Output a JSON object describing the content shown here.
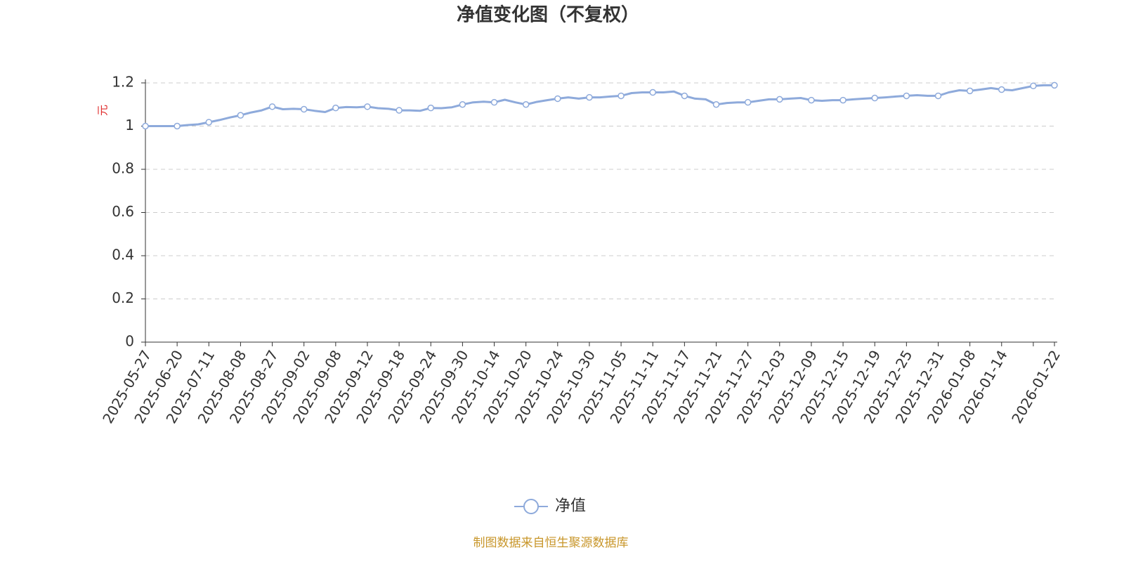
{
  "chart_data": {
    "type": "line",
    "title": "净值变化图（不复权）",
    "y_axis_label": "元",
    "source": "制图数据来自恒生聚源数据库",
    "categories": [
      "2025-05-27",
      null,
      null,
      "2025-06-20",
      null,
      null,
      "2025-07-11",
      null,
      null,
      "2025-08-08",
      null,
      null,
      "2025-08-27",
      null,
      null,
      "2025-09-02",
      null,
      null,
      "2025-09-08",
      null,
      null,
      "2025-09-12",
      null,
      null,
      "2025-09-18",
      null,
      null,
      "2025-09-24",
      null,
      null,
      "2025-09-30",
      null,
      null,
      "2025-10-14",
      null,
      null,
      "2025-10-20",
      null,
      null,
      "2025-10-24",
      null,
      null,
      "2025-10-30",
      null,
      null,
      "2025-11-05",
      null,
      null,
      "2025-11-11",
      null,
      null,
      "2025-11-17",
      null,
      null,
      "2025-11-21",
      null,
      null,
      "2025-11-27",
      null,
      null,
      "2025-12-03",
      null,
      null,
      "2025-12-09",
      null,
      null,
      "2025-12-15",
      null,
      null,
      "2025-12-19",
      null,
      null,
      "2025-12-25",
      null,
      null,
      "2025-12-31",
      null,
      null,
      "2026-01-08",
      null,
      null,
      "2026-01-14",
      null,
      null,
      null,
      null,
      "2026-01-22"
    ],
    "series": [
      {
        "name": "净值",
        "color": "#8eaadb",
        "values": [
          1.0,
          1.0,
          1.0,
          1.0,
          1.005,
          1.008,
          1.018,
          1.028,
          1.04,
          1.05,
          1.063,
          1.073,
          1.09,
          1.078,
          1.08,
          1.078,
          1.071,
          1.065,
          1.084,
          1.088,
          1.087,
          1.09,
          1.083,
          1.08,
          1.073,
          1.073,
          1.071,
          1.084,
          1.083,
          1.087,
          1.1,
          1.11,
          1.113,
          1.11,
          1.122,
          1.11,
          1.1,
          1.112,
          1.12,
          1.127,
          1.133,
          1.127,
          1.133,
          1.133,
          1.137,
          1.14,
          1.153,
          1.156,
          1.156,
          1.156,
          1.16,
          1.14,
          1.127,
          1.124,
          1.1,
          1.107,
          1.11,
          1.11,
          1.117,
          1.124,
          1.124,
          1.127,
          1.13,
          1.12,
          1.117,
          1.12,
          1.12,
          1.124,
          1.127,
          1.13,
          1.133,
          1.137,
          1.14,
          1.143,
          1.14,
          1.14,
          1.156,
          1.166,
          1.163,
          1.169,
          1.176,
          1.169,
          1.166,
          1.176,
          1.186,
          1.189,
          1.189
        ]
      }
    ],
    "ylim": [
      0,
      1.2
    ],
    "yticks": [
      0,
      0.2,
      0.4,
      0.6,
      0.8,
      1,
      1.2
    ],
    "grid": true,
    "legend": "bottom"
  }
}
